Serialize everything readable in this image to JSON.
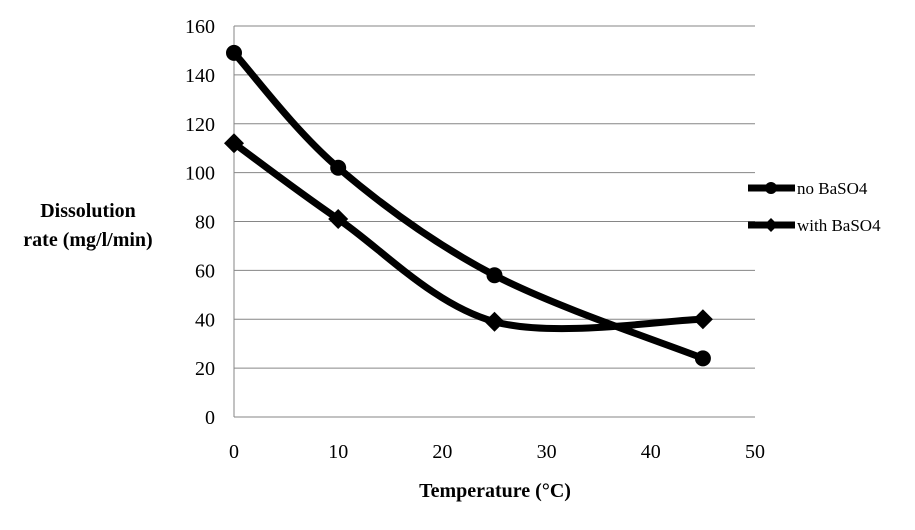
{
  "chart_data": {
    "type": "line",
    "title": "",
    "xlabel": "Temperature (°C)",
    "ylabel_lines": [
      "Dissolution",
      "rate (mg/l/min)"
    ],
    "xlim": [
      0,
      50
    ],
    "ylim": [
      0,
      160
    ],
    "xticks": [
      0,
      10,
      20,
      30,
      40,
      50
    ],
    "yticks": [
      0,
      20,
      40,
      60,
      80,
      100,
      120,
      140,
      160
    ],
    "grid": "horizontal",
    "legend_position": "right",
    "series": [
      {
        "name": "no BaSO4",
        "marker": "circle",
        "color": "#000000",
        "x": [
          0,
          10,
          25,
          45
        ],
        "y": [
          149,
          102,
          58,
          24
        ]
      },
      {
        "name": "with BaSO4",
        "marker": "diamond",
        "color": "#000000",
        "x": [
          0,
          10,
          25,
          45
        ],
        "y": [
          112,
          81,
          39,
          40
        ]
      }
    ]
  }
}
